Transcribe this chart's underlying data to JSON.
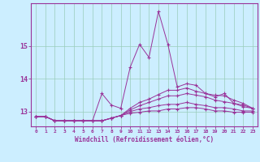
{
  "xlabel": "Windchill (Refroidissement éolien,°C)",
  "bg_color": "#cceeff",
  "line_color": "#993399",
  "grid_color": "#99ccbb",
  "xlim": [
    -0.5,
    23.5
  ],
  "ylim": [
    12.55,
    16.3
  ],
  "yticks": [
    13,
    14,
    15
  ],
  "xticks": [
    0,
    1,
    2,
    3,
    4,
    5,
    6,
    7,
    8,
    9,
    10,
    11,
    12,
    13,
    14,
    15,
    16,
    17,
    18,
    19,
    20,
    21,
    22,
    23
  ],
  "lines": [
    [
      12.85,
      12.85,
      12.72,
      12.72,
      12.72,
      12.72,
      12.72,
      13.55,
      13.2,
      13.1,
      14.35,
      15.05,
      14.65,
      16.05,
      15.05,
      13.75,
      13.85,
      13.8,
      13.55,
      13.45,
      13.55,
      13.25,
      13.2,
      13.1
    ],
    [
      12.85,
      12.85,
      12.72,
      12.72,
      12.72,
      12.72,
      12.72,
      12.72,
      12.8,
      12.88,
      13.1,
      13.28,
      13.38,
      13.52,
      13.65,
      13.65,
      13.72,
      13.62,
      13.55,
      13.5,
      13.48,
      13.35,
      13.25,
      13.1
    ],
    [
      12.85,
      12.85,
      12.72,
      12.72,
      12.72,
      12.72,
      12.72,
      12.72,
      12.8,
      12.88,
      13.05,
      13.18,
      13.28,
      13.38,
      13.48,
      13.48,
      13.55,
      13.5,
      13.45,
      13.35,
      13.3,
      13.25,
      13.15,
      13.1
    ],
    [
      12.85,
      12.85,
      12.72,
      12.72,
      12.72,
      12.72,
      12.72,
      12.72,
      12.8,
      12.88,
      13.0,
      13.08,
      13.12,
      13.18,
      13.22,
      13.22,
      13.28,
      13.22,
      13.18,
      13.12,
      13.12,
      13.08,
      13.02,
      13.02
    ],
    [
      12.85,
      12.85,
      12.72,
      12.72,
      12.72,
      12.72,
      12.72,
      12.72,
      12.8,
      12.88,
      12.95,
      12.98,
      13.02,
      13.02,
      13.08,
      13.08,
      13.12,
      13.12,
      13.08,
      13.02,
      13.02,
      12.98,
      12.98,
      12.98
    ]
  ]
}
